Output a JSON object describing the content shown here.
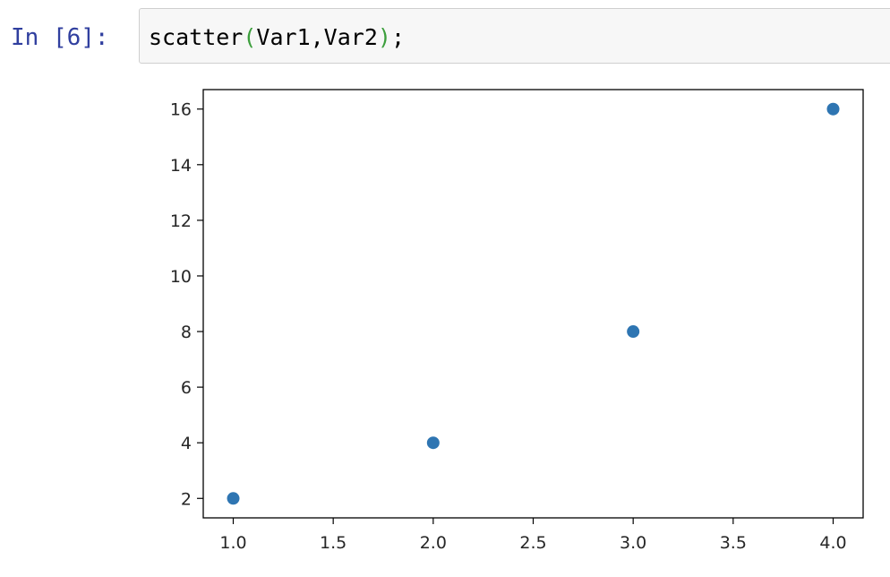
{
  "cell": {
    "prompt": "In [6]:",
    "code": {
      "fn": "scatter",
      "open_paren": "(",
      "args": "Var1,Var2",
      "close_paren": ")",
      "end": ";"
    }
  },
  "colors": {
    "prompt": "#303f9f",
    "paren": "#3d9f3d",
    "marker": "#2e75b2",
    "input_bg": "#f7f7f7"
  },
  "chart_data": {
    "type": "scatter",
    "title": "",
    "xlabel": "",
    "ylabel": "",
    "x": [
      1,
      2,
      3,
      4
    ],
    "y": [
      2,
      4,
      8,
      16
    ],
    "xlim": [
      0.85,
      4.15
    ],
    "ylim": [
      1.3,
      16.7
    ],
    "xticks": [
      1.0,
      1.5,
      2.0,
      2.5,
      3.0,
      3.5,
      4.0
    ],
    "xtick_labels": [
      "1.0",
      "1.5",
      "2.0",
      "2.5",
      "3.0",
      "3.5",
      "4.0"
    ],
    "yticks": [
      2,
      4,
      6,
      8,
      10,
      12,
      14,
      16
    ],
    "ytick_labels": [
      "2",
      "4",
      "6",
      "8",
      "10",
      "12",
      "14",
      "16"
    ],
    "grid": false,
    "legend": false
  }
}
